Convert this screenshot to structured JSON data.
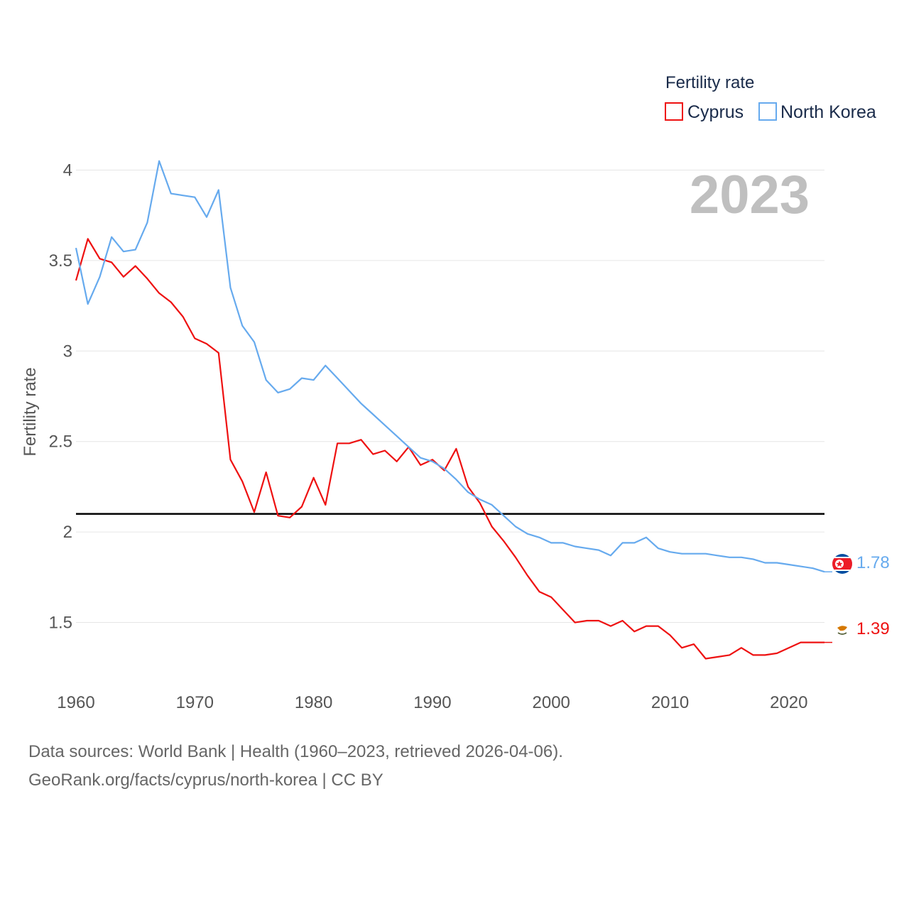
{
  "chart_data": {
    "type": "line",
    "xlabel": "",
    "ylabel": "Fertility rate",
    "xlim": [
      1960,
      2023
    ],
    "ylim": [
      1.2,
      4.1
    ],
    "x_ticks": [
      1960,
      1970,
      1980,
      1990,
      2000,
      2010,
      2020
    ],
    "y_ticks": [
      1.5,
      2,
      2.5,
      3,
      3.5,
      4
    ],
    "y_tick_labels": [
      "1.5",
      "2",
      "2.5",
      "3",
      "3.5",
      "4"
    ],
    "grid": true,
    "reference_line": {
      "y": 2.1,
      "color": "#000000"
    },
    "current_year_label": "2023",
    "legend": {
      "title": "Fertility rate",
      "placement": "top-right"
    },
    "x": [
      1960,
      1961,
      1962,
      1963,
      1964,
      1965,
      1966,
      1967,
      1968,
      1969,
      1970,
      1971,
      1972,
      1973,
      1974,
      1975,
      1976,
      1977,
      1978,
      1979,
      1980,
      1981,
      1982,
      1983,
      1984,
      1985,
      1986,
      1987,
      1988,
      1989,
      1990,
      1991,
      1992,
      1993,
      1994,
      1995,
      1996,
      1997,
      1998,
      1999,
      2000,
      2001,
      2002,
      2003,
      2004,
      2005,
      2006,
      2007,
      2008,
      2009,
      2010,
      2011,
      2012,
      2013,
      2014,
      2015,
      2016,
      2017,
      2018,
      2019,
      2020,
      2021,
      2022,
      2023
    ],
    "series": [
      {
        "name": "Cyprus",
        "color": "#ee1111",
        "flag_icon": "cyprus-flag-icon",
        "end_label": "1.39",
        "values": [
          3.39,
          3.62,
          3.51,
          3.49,
          3.41,
          3.47,
          3.4,
          3.32,
          3.27,
          3.19,
          3.07,
          3.04,
          2.99,
          2.4,
          2.28,
          2.11,
          2.33,
          2.09,
          2.08,
          2.14,
          2.3,
          2.15,
          2.49,
          2.49,
          2.51,
          2.43,
          2.45,
          2.39,
          2.47,
          2.37,
          2.4,
          2.34,
          2.46,
          2.25,
          2.16,
          2.03,
          1.95,
          1.86,
          1.76,
          1.67,
          1.64,
          1.57,
          1.5,
          1.51,
          1.51,
          1.48,
          1.51,
          1.45,
          1.48,
          1.48,
          1.43,
          1.36,
          1.38,
          1.3,
          1.31,
          1.32,
          1.36,
          1.32,
          1.32,
          1.33,
          1.36,
          1.39,
          1.39,
          1.39
        ]
      },
      {
        "name": "North Korea",
        "color": "#66aaee",
        "flag_icon": "north-korea-flag-icon",
        "end_label": "1.78",
        "values": [
          3.57,
          3.26,
          3.41,
          3.63,
          3.55,
          3.56,
          3.71,
          4.05,
          3.87,
          3.86,
          3.85,
          3.74,
          3.89,
          3.35,
          3.14,
          3.05,
          2.84,
          2.77,
          2.79,
          2.85,
          2.84,
          2.92,
          2.85,
          2.78,
          2.71,
          2.65,
          2.59,
          2.53,
          2.47,
          2.41,
          2.39,
          2.35,
          2.29,
          2.22,
          2.18,
          2.15,
          2.09,
          2.03,
          1.99,
          1.97,
          1.94,
          1.94,
          1.92,
          1.91,
          1.9,
          1.87,
          1.94,
          1.94,
          1.97,
          1.91,
          1.89,
          1.88,
          1.88,
          1.88,
          1.87,
          1.86,
          1.86,
          1.85,
          1.83,
          1.83,
          1.82,
          1.81,
          1.8,
          1.78
        ]
      }
    ]
  },
  "footer": {
    "sources": "Data sources: World Bank | Health (1960–2023, retrieved 2026-04-06).",
    "credit": "GeoRank.org/facts/cyprus/north-korea | CC BY"
  }
}
